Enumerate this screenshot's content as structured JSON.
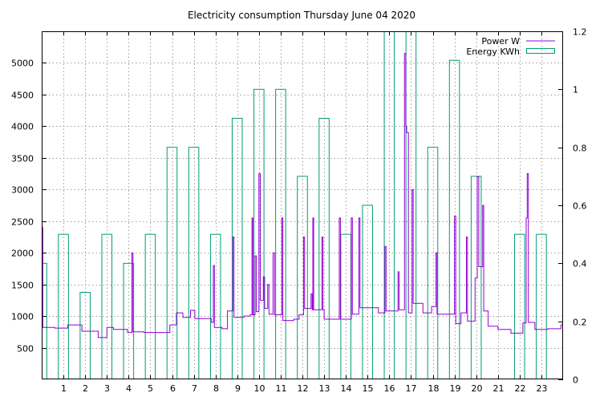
{
  "chart_data": {
    "type": "bar",
    "title": "Electricity consumption Thursday June 04 2020",
    "xlabel": "",
    "ylabel": "",
    "xlim": [
      0,
      24
    ],
    "ylim": [
      0,
      5500
    ],
    "y2lim": [
      0,
      1.2
    ],
    "x_ticks": [
      1,
      2,
      3,
      4,
      5,
      6,
      7,
      8,
      9,
      10,
      11,
      12,
      13,
      14,
      15,
      16,
      17,
      18,
      19,
      20,
      21,
      22,
      23
    ],
    "y_ticks": [
      500,
      1000,
      1500,
      2000,
      2500,
      3000,
      3500,
      4000,
      4500,
      5000
    ],
    "y2_ticks": [
      0,
      0.2,
      0.4,
      0.6,
      0.8,
      1,
      1.2
    ],
    "grid": true,
    "legend_position": "top-right",
    "series": [
      {
        "name": "Power W",
        "axis": "left",
        "color": "#9400d3",
        "points": [
          [
            0.0,
            2400
          ],
          [
            0.05,
            820
          ],
          [
            0.6,
            810
          ],
          [
            1.2,
            860
          ],
          [
            1.85,
            760
          ],
          [
            2.6,
            660
          ],
          [
            3.0,
            820
          ],
          [
            3.3,
            790
          ],
          [
            3.95,
            740
          ],
          [
            4.15,
            2000
          ],
          [
            4.2,
            750
          ],
          [
            4.7,
            740
          ],
          [
            5.3,
            740
          ],
          [
            5.9,
            860
          ],
          [
            6.2,
            1050
          ],
          [
            6.5,
            980
          ],
          [
            6.85,
            1090
          ],
          [
            7.05,
            960
          ],
          [
            7.5,
            960
          ],
          [
            7.8,
            900
          ],
          [
            7.9,
            1800
          ],
          [
            7.95,
            820
          ],
          [
            8.3,
            800
          ],
          [
            8.55,
            1080
          ],
          [
            8.8,
            2250
          ],
          [
            8.85,
            980
          ],
          [
            9.3,
            1000
          ],
          [
            9.6,
            1020
          ],
          [
            9.68,
            2550
          ],
          [
            9.72,
            1020
          ],
          [
            9.82,
            1950
          ],
          [
            9.88,
            1070
          ],
          [
            10.0,
            3250
          ],
          [
            10.06,
            1250
          ],
          [
            10.2,
            1620
          ],
          [
            10.26,
            1120
          ],
          [
            10.4,
            1500
          ],
          [
            10.46,
            1030
          ],
          [
            10.65,
            2000
          ],
          [
            10.72,
            1020
          ],
          [
            11.05,
            2550
          ],
          [
            11.1,
            930
          ],
          [
            11.6,
            950
          ],
          [
            11.85,
            1020
          ],
          [
            12.05,
            2250
          ],
          [
            12.1,
            1120
          ],
          [
            12.4,
            1350
          ],
          [
            12.45,
            1100
          ],
          [
            12.48,
            2550
          ],
          [
            12.52,
            1100
          ],
          [
            12.9,
            2250
          ],
          [
            12.95,
            1100
          ],
          [
            13.0,
            950
          ],
          [
            13.7,
            2550
          ],
          [
            13.75,
            950
          ],
          [
            14.25,
            2550
          ],
          [
            14.3,
            1030
          ],
          [
            14.6,
            2550
          ],
          [
            14.65,
            1130
          ],
          [
            15.5,
            1050
          ],
          [
            15.8,
            2100
          ],
          [
            15.85,
            1080
          ],
          [
            16.4,
            1700
          ],
          [
            16.45,
            1100
          ],
          [
            16.7,
            5150
          ],
          [
            16.76,
            4000
          ],
          [
            16.8,
            3900
          ],
          [
            16.88,
            1050
          ],
          [
            17.05,
            3000
          ],
          [
            17.1,
            1200
          ],
          [
            17.55,
            1050
          ],
          [
            17.95,
            1150
          ],
          [
            18.15,
            2000
          ],
          [
            18.2,
            1030
          ],
          [
            19.0,
            2580
          ],
          [
            19.06,
            880
          ],
          [
            19.3,
            1050
          ],
          [
            19.55,
            2250
          ],
          [
            19.6,
            920
          ],
          [
            19.95,
            1600
          ],
          [
            20.05,
            3200
          ],
          [
            20.12,
            1780
          ],
          [
            20.3,
            2750
          ],
          [
            20.35,
            1080
          ],
          [
            20.55,
            840
          ],
          [
            21.0,
            790
          ],
          [
            21.6,
            730
          ],
          [
            22.15,
            890
          ],
          [
            22.3,
            2550
          ],
          [
            22.35,
            3250
          ],
          [
            22.4,
            900
          ],
          [
            22.7,
            790
          ],
          [
            23.3,
            800
          ],
          [
            23.9,
            860
          ]
        ]
      },
      {
        "name": "Energy KWh",
        "axis": "right",
        "color": "#009e73",
        "bar_width": 0.5,
        "x": [
          0,
          1,
          2,
          3,
          4,
          5,
          6,
          7,
          8,
          9,
          10,
          11,
          12,
          13,
          14,
          15,
          16,
          17,
          18,
          19,
          20,
          21,
          22,
          23
        ],
        "values": [
          0.4,
          0.5,
          0.3,
          0.5,
          0.4,
          0.5,
          0.8,
          0.8,
          0.5,
          0.9,
          1.0,
          1.0,
          0.7,
          0.9,
          0.5,
          0.6,
          1.3,
          1.25,
          0.8,
          1.1,
          0.7,
          0,
          0.5,
          0.5
        ]
      }
    ]
  }
}
